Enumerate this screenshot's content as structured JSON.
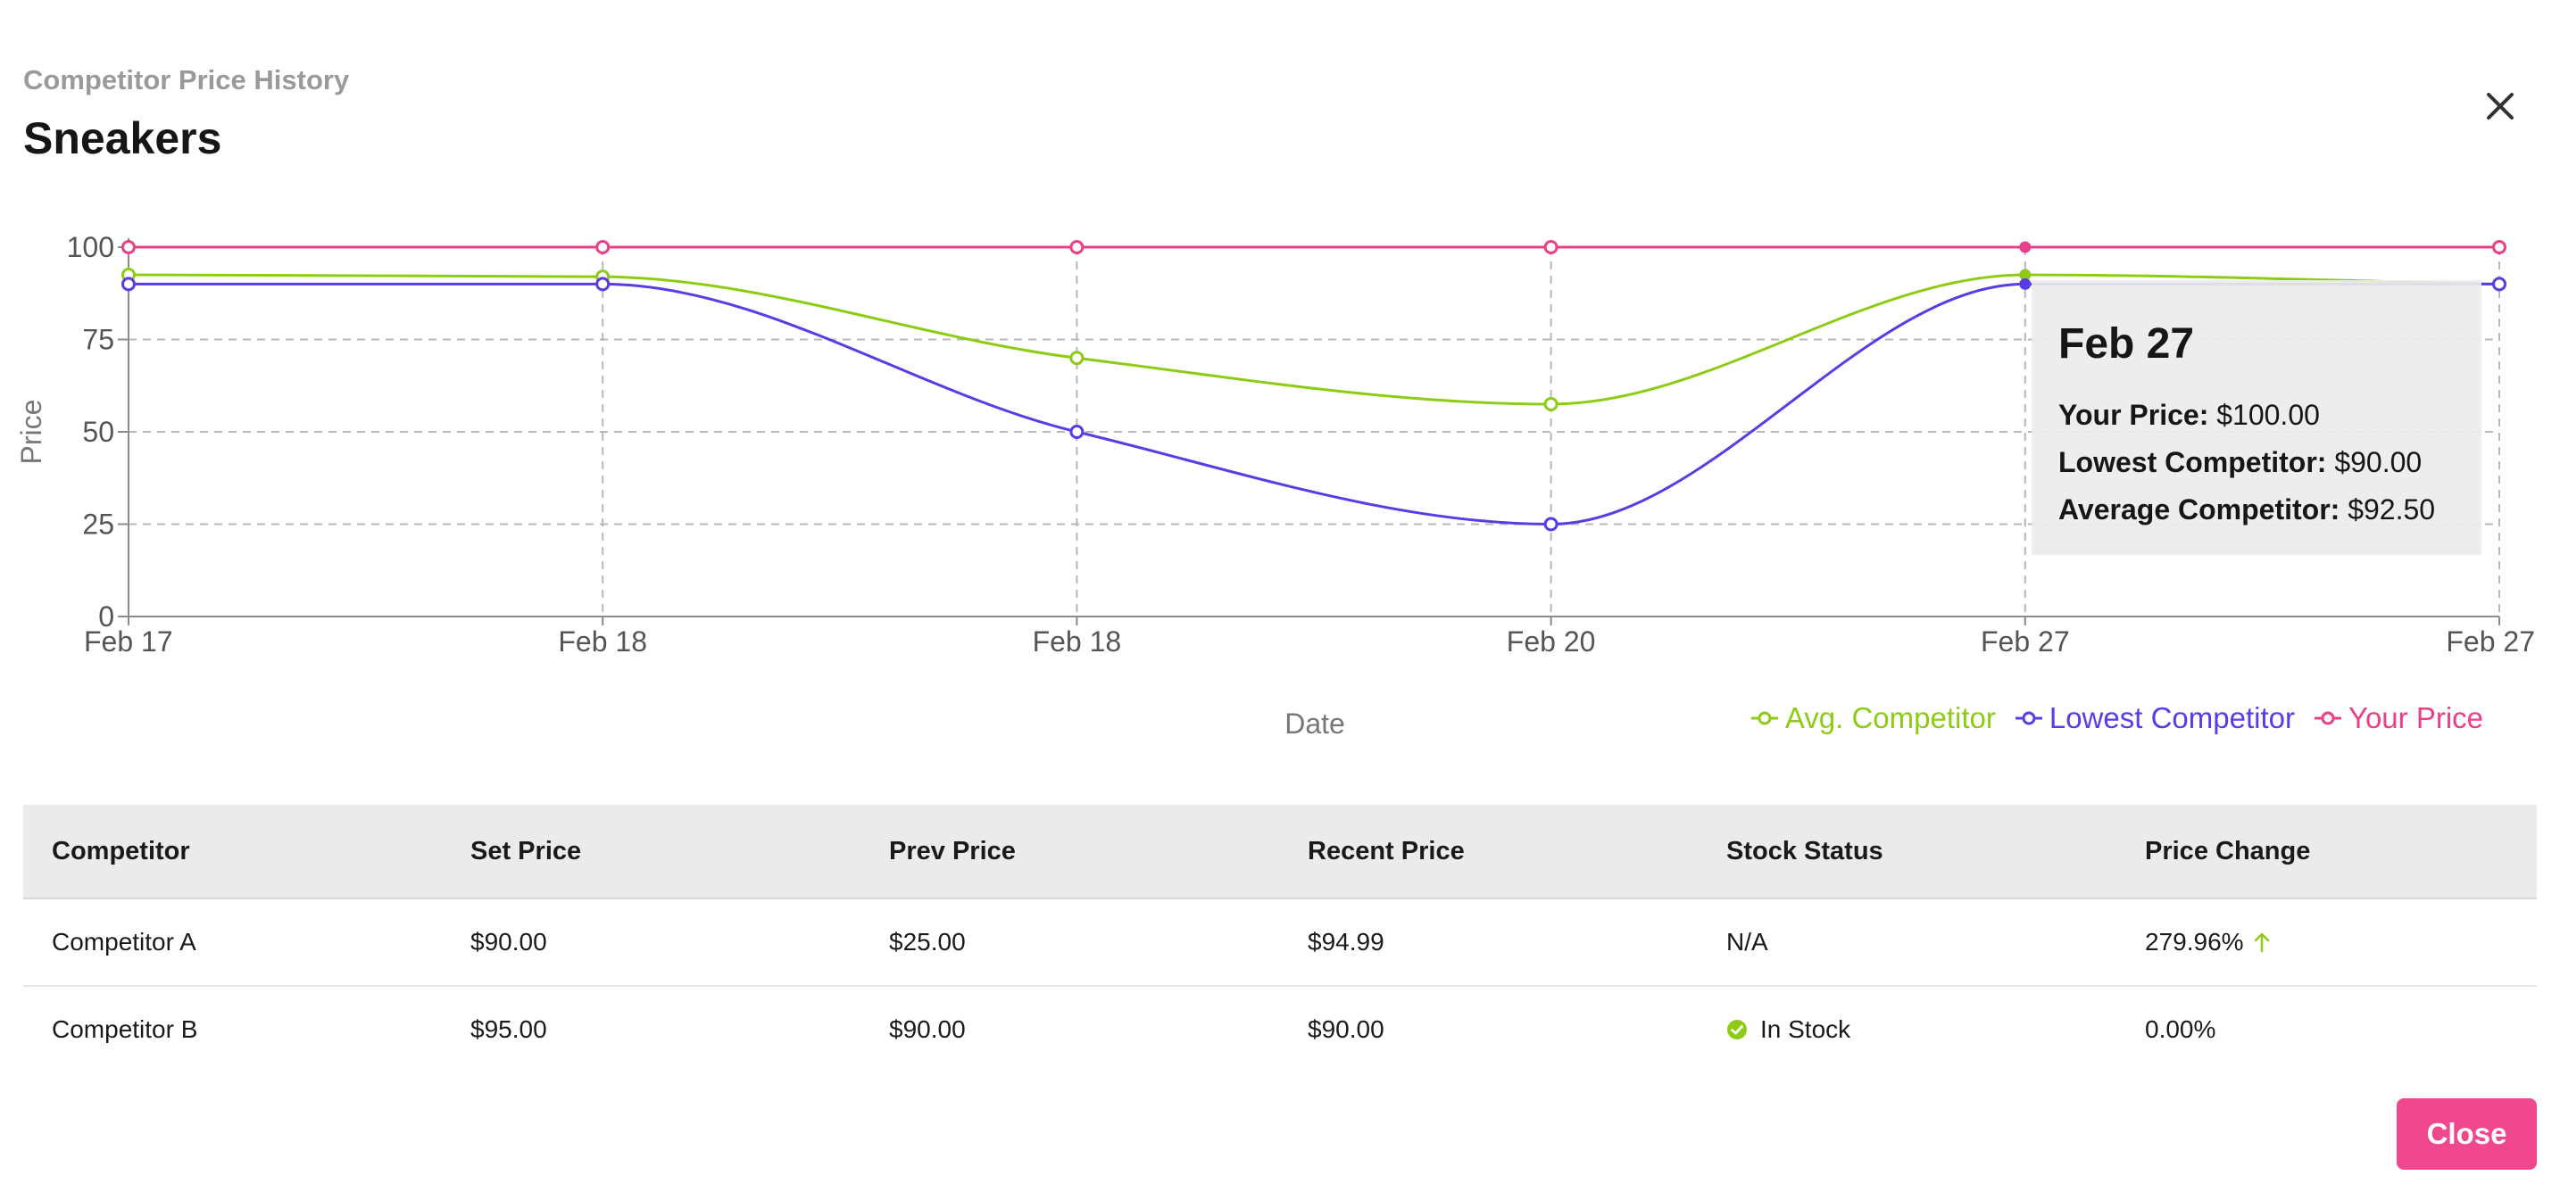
{
  "modal": {
    "subtitle": "Competitor Price History",
    "title": "Sneakers",
    "close_button_label": "Close"
  },
  "tooltip": {
    "date": "Feb 27",
    "rows": [
      {
        "label": "Your Price:",
        "value": "$100.00"
      },
      {
        "label": "Lowest Competitor:",
        "value": "$90.00"
      },
      {
        "label": "Average Competitor:",
        "value": "$92.50"
      }
    ]
  },
  "colors": {
    "avg": "#8ecb15",
    "lowest": "#5b3be6",
    "yours": "#e9408a",
    "grid": "#b8b8b8",
    "axis": "#8a8a8a",
    "button": "#f0488f",
    "in_stock": "#8ecb15"
  },
  "chart_data": {
    "type": "line",
    "x": [
      "Feb 17",
      "Feb 18",
      "Feb 18",
      "Feb 20",
      "Feb 27",
      "Feb 27"
    ],
    "xlabel": "Date",
    "ylabel": "Price",
    "ylim": [
      0,
      100
    ],
    "yticks": [
      0,
      25,
      50,
      75,
      100
    ],
    "grid": true,
    "legend_position": "bottom-right",
    "series": [
      {
        "name": "Avg. Competitor",
        "color": "#8ecb15",
        "values": [
          92.5,
          92,
          70,
          57.5,
          92.5,
          90
        ]
      },
      {
        "name": "Lowest Competitor",
        "color": "#5b3be6",
        "values": [
          90,
          90,
          50,
          25,
          90,
          90
        ]
      },
      {
        "name": "Your Price",
        "color": "#e9408a",
        "values": [
          100,
          100,
          100,
          100,
          100,
          100
        ]
      }
    ]
  },
  "table": {
    "headers": [
      "Competitor",
      "Set Price",
      "Prev Price",
      "Recent Price",
      "Stock Status",
      "Price Change"
    ],
    "rows": [
      {
        "competitor": "Competitor A",
        "set_price": "$90.00",
        "prev_price": "$25.00",
        "recent_price": "$94.99",
        "stock_status": "N/A",
        "stock_icon": "",
        "price_change": "279.96%",
        "change_icon": "arrow-up-icon"
      },
      {
        "competitor": "Competitor B",
        "set_price": "$95.00",
        "prev_price": "$90.00",
        "recent_price": "$90.00",
        "stock_status": "In Stock",
        "stock_icon": "check-circle-icon",
        "price_change": "0.00%",
        "change_icon": ""
      }
    ]
  }
}
